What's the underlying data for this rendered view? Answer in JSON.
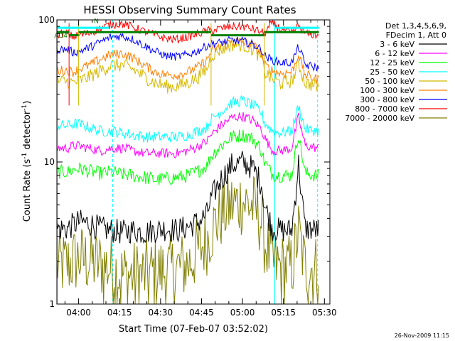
{
  "chart_data": {
    "type": "line",
    "title": "HESSI Observing Summary Count Rates",
    "xlabel": "Start Time (07-Feb-07 03:52:02)",
    "ylabel_main": "Count Rate (s",
    "ylabel_sup1": "-1",
    "ylabel_mid": " detector",
    "ylabel_sup2": "-1",
    "ylabel_end": ")",
    "footer": "26-Nov-2009 11:15",
    "x_range_minutes": [
      "03:52:02",
      "05:32:00"
    ],
    "x_ticks": [
      "04:00",
      "04:15",
      "04:30",
      "04:45",
      "05:00",
      "05:15",
      "05:30"
    ],
    "x_tick_minutes": [
      240,
      255,
      270,
      285,
      300,
      315,
      330
    ],
    "y_scale": "log",
    "y_range": [
      1,
      100
    ],
    "y_ticks": [
      "1",
      "10",
      "100"
    ],
    "grid": false,
    "legend_header": [
      "Det 1,3,4,5,6,9,",
      "FDecim 1, Att 0"
    ],
    "legend_position": "right",
    "annotations": [
      {
        "text": "AD4",
        "x_min": 233.5,
        "y": 75
      },
      {
        "text": "N",
        "x_min": 246.5,
        "y": 95
      }
    ],
    "series": [
      {
        "name": "3 - 6 keV",
        "color": "#000000"
      },
      {
        "name": "6 - 12 keV",
        "color": "#ff00ff"
      },
      {
        "name": "12 - 25 keV",
        "color": "#00ff00"
      },
      {
        "name": "25 - 50 keV",
        "color": "#00ffff"
      },
      {
        "name": "50 - 100 keV",
        "color": "#d4b800"
      },
      {
        "name": "100 - 300 keV",
        "color": "#ff7f00"
      },
      {
        "name": "300 - 800 keV",
        "color": "#0000ff"
      },
      {
        "name": "800 - 7000 keV",
        "color": "#ff0000"
      },
      {
        "name": "7000 - 20000 keV",
        "color": "#7f7f00"
      }
    ],
    "profile_points": [
      {
        "x": 232.0,
        "y": [
          3.4,
          12.5,
          8.5,
          18,
          37,
          44,
          62,
          80,
          1.9
        ]
      },
      {
        "x": 236.0,
        "y": [
          3.4,
          12.5,
          8.5,
          18,
          37,
          44,
          62,
          80,
          1.9
        ]
      },
      {
        "x": 238.0,
        "y": [
          3.6,
          13,
          8.8,
          18.5,
          36,
          43,
          59,
          76,
          2.0
        ]
      },
      {
        "x": 240.0,
        "y": [
          3.8,
          13,
          9,
          18.5,
          37,
          45,
          60,
          78,
          2.1
        ]
      },
      {
        "x": 244.0,
        "y": [
          3.7,
          12.5,
          8.6,
          17.5,
          40,
          48,
          64,
          81,
          2.0
        ]
      },
      {
        "x": 248.0,
        "y": [
          3.4,
          12,
          8.3,
          16.5,
          44,
          53,
          70,
          87,
          1.9
        ]
      },
      {
        "x": 252.0,
        "y": [
          3.3,
          12.5,
          8.5,
          16.5,
          48,
          57,
          76,
          93,
          1.8
        ]
      },
      {
        "x": 256.0,
        "y": [
          3.2,
          12.5,
          8.2,
          16,
          48,
          58,
          77,
          94,
          1.6
        ]
      },
      {
        "x": 260.0,
        "y": [
          3.3,
          12,
          8,
          15.5,
          45,
          54,
          73,
          89,
          1.6
        ]
      },
      {
        "x": 264.0,
        "y": [
          3.2,
          11.5,
          7.8,
          15,
          40,
          48,
          66,
          83,
          1.6
        ]
      },
      {
        "x": 268.0,
        "y": [
          3.3,
          11.5,
          7.5,
          15,
          36,
          43,
          60,
          78,
          1.7
        ]
      },
      {
        "x": 272.0,
        "y": [
          3.4,
          11.5,
          7.6,
          15,
          34,
          41,
          56,
          74,
          1.7
        ]
      },
      {
        "x": 276.0,
        "y": [
          3.3,
          11.5,
          7.8,
          15,
          34,
          41,
          55,
          73,
          1.8
        ]
      },
      {
        "x": 280.0,
        "y": [
          3.5,
          12,
          8,
          15.5,
          36,
          43,
          57,
          76,
          1.9
        ]
      },
      {
        "x": 284.0,
        "y": [
          3.8,
          13,
          8.7,
          16.5,
          40,
          47,
          61,
          80,
          2.4
        ]
      },
      {
        "x": 287.0,
        "y": [
          4.3,
          14,
          9.4,
          17.5,
          45,
          52,
          66,
          84,
          2.8
        ]
      },
      {
        "x": 288.5,
        "y": [
          5.5,
          15.5,
          11,
          20,
          56,
          60,
          68,
          84,
          3.3
        ]
      },
      {
        "x": 292.0,
        "y": [
          7.5,
          18,
          13,
          22.5,
          62,
          65,
          69,
          87,
          4.2
        ]
      },
      {
        "x": 296.0,
        "y": [
          9.5,
          20.5,
          15,
          26,
          67,
          70,
          72,
          90,
          5.0
        ]
      },
      {
        "x": 300.0,
        "y": [
          10,
          21,
          15.5,
          27,
          67,
          70,
          71,
          90,
          5.3
        ]
      },
      {
        "x": 304.0,
        "y": [
          9,
          19.5,
          14.5,
          25,
          62,
          66,
          67,
          86,
          4.8
        ]
      },
      {
        "x": 307.0,
        "y": [
          7,
          17,
          12,
          22,
          54,
          58,
          62,
          82,
          3.8
        ]
      },
      {
        "x": 308.0,
        "y": [
          5,
          15,
          10,
          19,
          43,
          48,
          56,
          80,
          2.8
        ]
      },
      {
        "x": 311.0,
        "y": [
          3.4,
          12,
          8.2,
          16.5,
          38,
          44,
          52,
          95,
          1.9
        ]
      },
      {
        "x": 314.0,
        "y": [
          3.3,
          12,
          8,
          16,
          36,
          42,
          50,
          86,
          1.8
        ]
      },
      {
        "x": 318.0,
        "y": [
          3.3,
          12.5,
          8.1,
          16.5,
          37,
          43,
          50,
          80,
          1.8
        ]
      },
      {
        "x": 319.5,
        "y": [
          6,
          17,
          12,
          21,
          43,
          50,
          58,
          86,
          2.5
        ]
      },
      {
        "x": 320.5,
        "y": [
          10,
          21,
          16,
          25,
          50,
          58,
          65,
          92,
          3.3
        ]
      },
      {
        "x": 321.5,
        "y": [
          6,
          17,
          12,
          21,
          43,
          50,
          58,
          86,
          2.5
        ]
      },
      {
        "x": 323.0,
        "y": [
          3.4,
          13,
          8.3,
          17,
          36,
          41,
          48,
          80,
          1.8
        ]
      },
      {
        "x": 328.0,
        "y": [
          3.3,
          12.5,
          8,
          16.5,
          34,
          38,
          46,
          78,
          1.8
        ]
      }
    ],
    "thresholds": {
      "black_noise_floor": 2.5,
      "olive_floor": 1.2
    },
    "green_level_segments": [
      {
        "x0": 232.0,
        "x1": 236.5,
        "y": 82
      },
      {
        "x0": 236.5,
        "x1": 240.0,
        "y": 78
      },
      {
        "x0": 240.0,
        "x1": 288.5,
        "y": 82
      },
      {
        "x0": 288.5,
        "x1": 308.0,
        "y": 78
      },
      {
        "x0": 308.0,
        "x1": 328.0,
        "y": 82
      }
    ],
    "cyan_level_segments": [
      {
        "x0": 232.0,
        "x1": 251.0,
        "y": 88
      },
      {
        "x0": 312.0,
        "x1": 328.0,
        "y": 88
      }
    ],
    "dashed_marker_minutes": [
      252.5,
      327.5
    ],
    "solid_marker_minutes": [
      232.2,
      311.8
    ],
    "vertical_jump_lines": [
      {
        "x": 236.5,
        "color": "#ff0000"
      },
      {
        "x": 240.0,
        "color": "#d4b800"
      },
      {
        "x": 288.5,
        "color": "#d4b800"
      },
      {
        "x": 308.0,
        "color": "#d4b800"
      }
    ]
  }
}
